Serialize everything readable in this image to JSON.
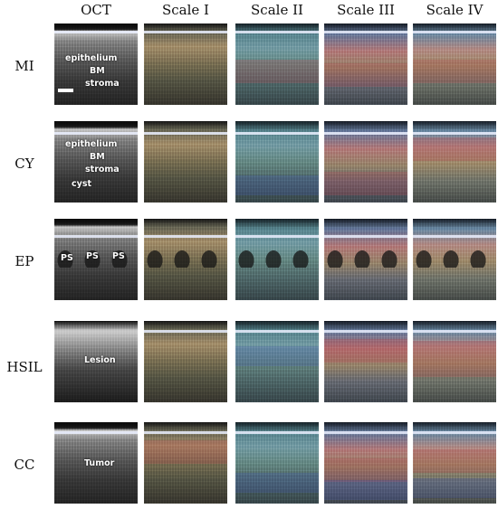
{
  "columns": [
    "OCT",
    "Scale I",
    "Scale II",
    "Scale III",
    "Scale IV"
  ],
  "rows": [
    {
      "label": "MI",
      "oct_labels": [
        "epithelium",
        "BM",
        "stroma"
      ],
      "scale_bar": true
    },
    {
      "label": "CY",
      "oct_labels": [
        "epithelium",
        "BM",
        "stroma",
        "cyst"
      ],
      "scale_bar": false
    },
    {
      "label": "EP",
      "oct_labels": [
        "PS",
        "PS",
        "PS"
      ],
      "scale_bar": false
    },
    {
      "label": "HSIL",
      "oct_labels": [
        "Lesion"
      ],
      "scale_bar": false
    },
    {
      "label": "CC",
      "oct_labels": [
        "Tumor"
      ],
      "scale_bar": false
    }
  ]
}
